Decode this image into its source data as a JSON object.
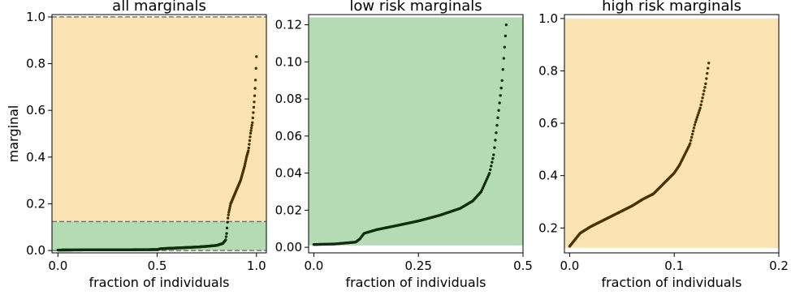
{
  "chart_data": [
    {
      "type": "scatter",
      "title": "all marginals",
      "xlabel": "fraction of individuals",
      "ylabel": "marginal",
      "xlim": [
        -0.03,
        1.05
      ],
      "ylim": [
        -0.01,
        1.01
      ],
      "xticks": [
        0.0,
        0.5,
        1.0
      ],
      "xtick_labels": [
        "0.0",
        "0.5",
        "1.0"
      ],
      "yticks": [
        0.0,
        0.2,
        0.4,
        0.6,
        0.8,
        1.0
      ],
      "ytick_labels": [
        "0.0",
        "0.2",
        "0.4",
        "0.6",
        "0.8",
        "1.0"
      ],
      "regions": [
        {
          "y0": 0.124,
          "y1": 1.0,
          "color": "#fce3b4"
        },
        {
          "y0": 0.0,
          "y1": 0.124,
          "color": "#b5dbb5"
        }
      ],
      "hlines": [
        0.0,
        0.124,
        1.0
      ],
      "curve_x": [
        0.0,
        0.1,
        0.2,
        0.3,
        0.4,
        0.5,
        0.52,
        0.6,
        0.7,
        0.75,
        0.8,
        0.83,
        0.845,
        0.85,
        0.855,
        0.86,
        0.87,
        0.88,
        0.9,
        0.92,
        0.94,
        0.95,
        0.96,
        0.97,
        0.98,
        0.985,
        0.99,
        0.995,
        1.0
      ],
      "curve_y": [
        0.002,
        0.0025,
        0.003,
        0.003,
        0.0035,
        0.004,
        0.008,
        0.011,
        0.015,
        0.018,
        0.022,
        0.03,
        0.045,
        0.075,
        0.13,
        0.16,
        0.2,
        0.22,
        0.26,
        0.3,
        0.36,
        0.4,
        0.43,
        0.5,
        0.55,
        0.6,
        0.65,
        0.72,
        0.83
      ],
      "n_points": 440
    },
    {
      "type": "scatter",
      "title": "low risk marginals",
      "xlabel": "fraction of individuals",
      "xlim": [
        -0.0125,
        0.5
      ],
      "ylim": [
        -0.003,
        0.1255
      ],
      "xticks": [
        0.0,
        0.25,
        0.5
      ],
      "xtick_labels": [
        "0.0",
        "0.25",
        "0.5"
      ],
      "yticks": [
        0.0,
        0.02,
        0.04,
        0.06,
        0.08,
        0.1,
        0.12
      ],
      "ytick_labels": [
        "0.00",
        "0.02",
        "0.04",
        "0.06",
        "0.08",
        "0.10",
        "0.12"
      ],
      "regions": [
        {
          "y0": 0.001,
          "y1": 0.124,
          "color": "#b5dbb5"
        }
      ],
      "curve_x": [
        0.0,
        0.05,
        0.1,
        0.11,
        0.12,
        0.15,
        0.2,
        0.25,
        0.3,
        0.35,
        0.38,
        0.4,
        0.42,
        0.43,
        0.44,
        0.45,
        0.455,
        0.46
      ],
      "curve_y": [
        0.0015,
        0.0018,
        0.0028,
        0.0045,
        0.0075,
        0.0095,
        0.0118,
        0.0142,
        0.0172,
        0.021,
        0.025,
        0.03,
        0.04,
        0.05,
        0.07,
        0.09,
        0.105,
        0.12
      ],
      "n_points": 230
    },
    {
      "type": "scatter",
      "title": "high risk marginals",
      "xlabel": "fraction of individuals",
      "xlim": [
        -0.005,
        0.2
      ],
      "ylim": [
        0.105,
        1.015
      ],
      "xticks": [
        0.0,
        0.1,
        0.2
      ],
      "xtick_labels": [
        "0.0",
        "0.1",
        "0.2"
      ],
      "yticks": [
        0.2,
        0.4,
        0.6,
        0.8,
        1.0
      ],
      "ytick_labels": [
        "0.2",
        "0.4",
        "0.6",
        "0.8",
        "1.0"
      ],
      "regions": [
        {
          "y0": 0.124,
          "y1": 1.0,
          "color": "#fce3b4"
        }
      ],
      "curve_x": [
        0.0,
        0.005,
        0.01,
        0.02,
        0.03,
        0.04,
        0.05,
        0.06,
        0.07,
        0.08,
        0.09,
        0.1,
        0.105,
        0.11,
        0.115,
        0.12,
        0.125,
        0.13,
        0.133
      ],
      "curve_y": [
        0.13,
        0.155,
        0.18,
        0.205,
        0.225,
        0.245,
        0.265,
        0.285,
        0.31,
        0.33,
        0.37,
        0.41,
        0.44,
        0.48,
        0.52,
        0.6,
        0.66,
        0.75,
        0.83
      ],
      "n_points": 180
    }
  ]
}
